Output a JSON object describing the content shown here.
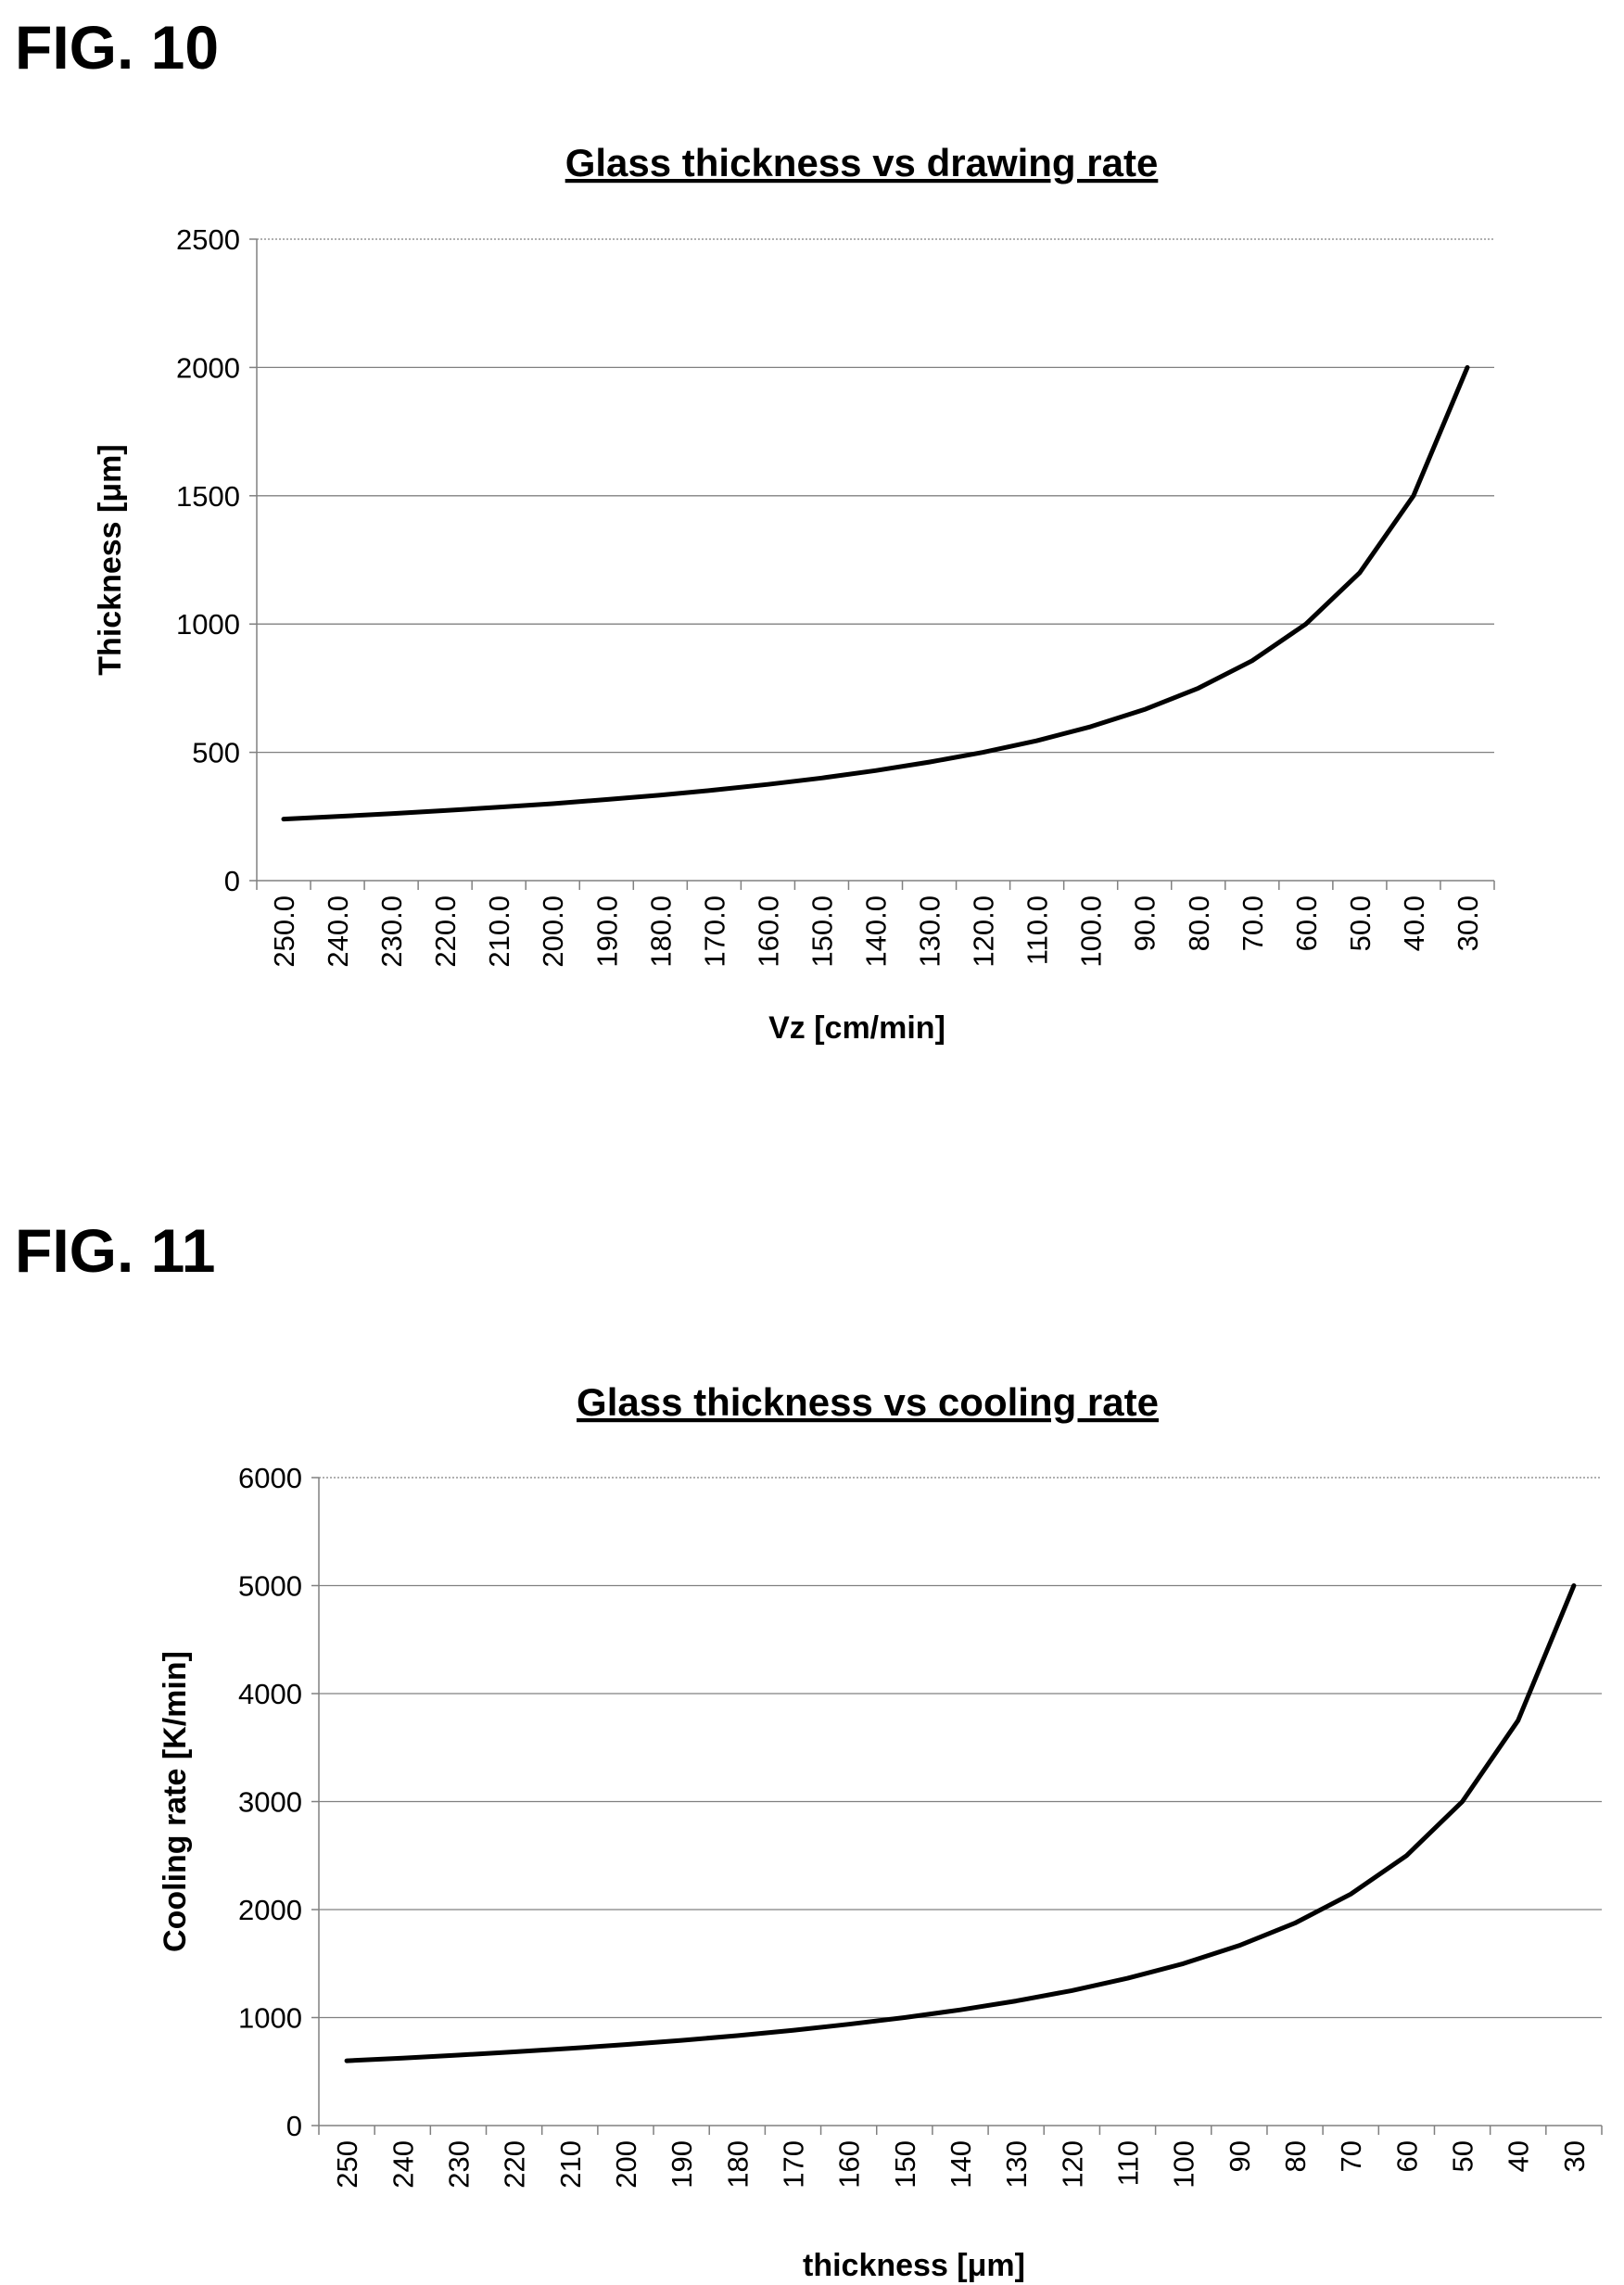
{
  "figures": [
    {
      "label": "FIG. 10"
    },
    {
      "label": "FIG. 11"
    }
  ],
  "colors": {
    "line": "#000000",
    "grid": "#808080",
    "axis": "#808080"
  },
  "chart_data": [
    {
      "type": "line",
      "title": "Glass thickness vs drawing rate",
      "xlabel": "Vz [cm/min]",
      "ylabel": "Thickness  [μm]",
      "categories": [
        "250.0",
        "240.0",
        "230.0",
        "220.0",
        "210.0",
        "200.0",
        "190.0",
        "180.0",
        "170.0",
        "160.0",
        "150.0",
        "140.0",
        "130.0",
        "120.0",
        "110.0",
        "100.0",
        "90.0",
        "80.0",
        "70.0",
        "60.0",
        "50.0",
        "40.0",
        "30.0"
      ],
      "values": [
        240,
        250,
        261,
        273,
        286,
        300,
        316,
        333,
        353,
        375,
        400,
        429,
        462,
        500,
        545,
        600,
        667,
        750,
        857,
        1000,
        1200,
        1500,
        2000
      ],
      "ylim": [
        0,
        2500
      ],
      "yticks": [
        "0",
        "500",
        "1000",
        "1500",
        "2000",
        "2500"
      ],
      "grid": true,
      "legend": "none"
    },
    {
      "type": "line",
      "title": "Glass thickness vs cooling rate",
      "xlabel": "thickness [μm]",
      "ylabel": "Cooling rate  [K/min]",
      "categories": [
        "250",
        "240",
        "230",
        "220",
        "210",
        "200",
        "190",
        "180",
        "170",
        "160",
        "150",
        "140",
        "130",
        "120",
        "110",
        "100",
        "90",
        "80",
        "70",
        "60",
        "50",
        "40",
        "30"
      ],
      "values": [
        600,
        625,
        652,
        682,
        714,
        750,
        789,
        833,
        882,
        938,
        1000,
        1071,
        1154,
        1250,
        1364,
        1500,
        1667,
        1875,
        2143,
        2500,
        3000,
        3750,
        5000
      ],
      "ylim": [
        0,
        6000
      ],
      "yticks": [
        "0",
        "1000",
        "2000",
        "3000",
        "4000",
        "5000",
        "6000"
      ],
      "grid": true,
      "legend": "none"
    }
  ]
}
